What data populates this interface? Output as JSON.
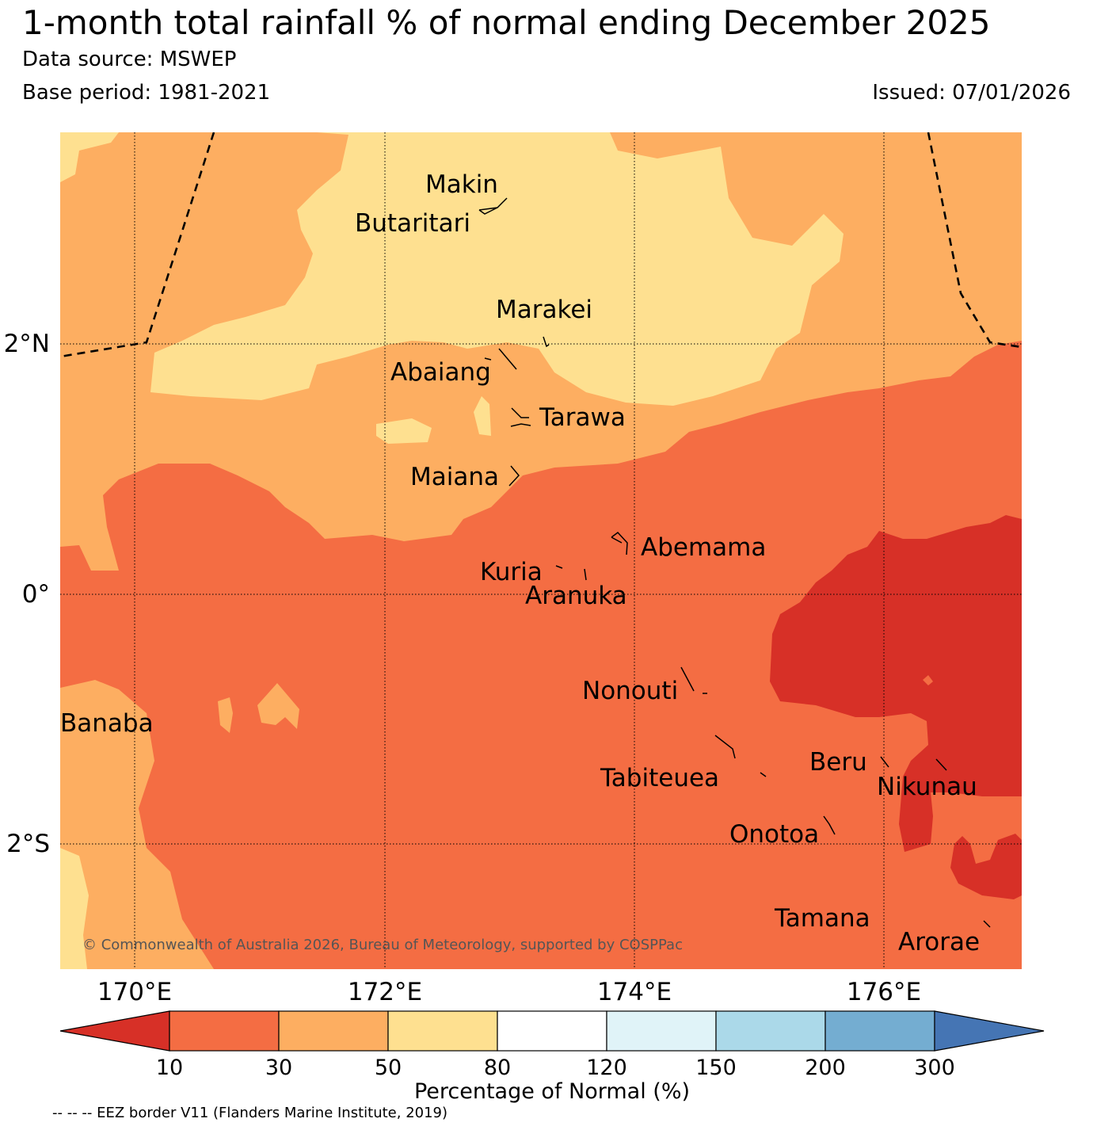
{
  "header": {
    "title": "1-month total rainfall % of normal ending December 2025",
    "source": "Data source: MSWEP",
    "base_period": "Base period: 1981-2021",
    "issued": "Issued: 07/01/2026"
  },
  "map": {
    "x_ticks": [
      "170°E",
      "172°E",
      "174°E",
      "176°E"
    ],
    "y_ticks": [
      "2°N",
      "0°",
      "2°S"
    ],
    "islands": [
      "Makin",
      "Butaritari",
      "Marakei",
      "Abaiang",
      "Tarawa",
      "Maiana",
      "Abemama",
      "Kuria",
      "Aranuka",
      "Nonouti",
      "Banaba",
      "Tabiteuea",
      "Beru",
      "Nikunau",
      "Onotoa",
      "Tamana",
      "Arorae"
    ],
    "copyright": "© Commonwealth of Australia 2026, Bureau of Meteorology, supported by COSPPac",
    "colors": {
      "below_10": "#d73027",
      "r10_30": "#f46d43",
      "r30_50": "#fdae61",
      "r50_80": "#fee090",
      "r80_120": "#ffffff",
      "r120_150": "#e0f3f8",
      "r150_200": "#abd9e9",
      "r200_300": "#74add1",
      "above_300": "#4575b4"
    }
  },
  "colorbar": {
    "ticks": [
      "10",
      "30",
      "50",
      "80",
      "120",
      "150",
      "200",
      "300"
    ],
    "label": "Percentage of Normal (%)"
  },
  "footer": {
    "eez_note": "-- -- -- EEZ border V11 (Flanders Marine Institute, 2019)"
  }
}
